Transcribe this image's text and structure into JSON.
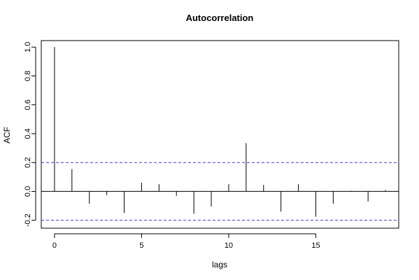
{
  "chart_data": {
    "type": "bar",
    "title": "Autocorrelation",
    "xlabel": "lags",
    "ylabel": "ACF",
    "xlim": [
      -0.76,
      19.76
    ],
    "ylim": [
      -0.255,
      1.045
    ],
    "x_ticks": [
      0,
      5,
      10,
      15
    ],
    "y_ticks": [
      -0.2,
      0.0,
      0.2,
      0.4,
      0.6,
      0.8,
      1.0
    ],
    "y_tick_labels": [
      "-0.2",
      "0.0",
      "0.2",
      "0.4",
      "0.6",
      "0.8",
      "1.0"
    ],
    "confidence_bounds": [
      0.2,
      -0.2
    ],
    "bound_color": "#3b3bd6",
    "series": [
      {
        "lags": [
          0,
          1,
          2,
          3,
          4,
          5,
          6,
          7,
          8,
          9,
          10,
          11,
          12,
          13,
          14,
          15,
          16,
          17,
          18,
          19
        ],
        "values": [
          1.0,
          0.155,
          -0.085,
          -0.025,
          -0.15,
          0.06,
          0.05,
          -0.03,
          -0.155,
          -0.105,
          0.05,
          0.335,
          0.045,
          -0.14,
          0.05,
          -0.175,
          -0.085,
          0.005,
          -0.07,
          0.01
        ]
      }
    ]
  }
}
